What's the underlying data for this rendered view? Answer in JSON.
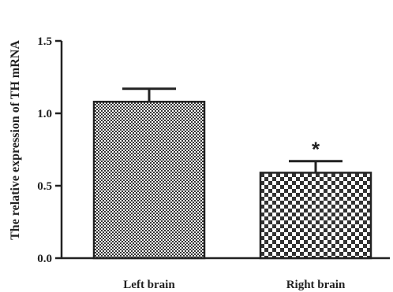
{
  "chart_data": {
    "type": "bar",
    "title": "",
    "xlabel": "",
    "ylabel": "The relative expression of TH mRNA",
    "categories": [
      "Left brain",
      "Right brain"
    ],
    "values": [
      1.08,
      0.59
    ],
    "error_bars": [
      0.09,
      0.08
    ],
    "annotations": [
      "",
      "*"
    ],
    "ylim": [
      0,
      1.5
    ],
    "yticks": [
      "0.0",
      "0.5",
      "1.0",
      "1.5"
    ],
    "ytick_values": [
      0,
      0.5,
      1.0,
      1.5
    ],
    "grid": false,
    "legend": false,
    "bar_patterns": [
      "fine-dots",
      "checkerboard"
    ],
    "colors": {
      "axis": "#222222",
      "bar_fill": "#333333",
      "background": "#ffffff"
    }
  }
}
